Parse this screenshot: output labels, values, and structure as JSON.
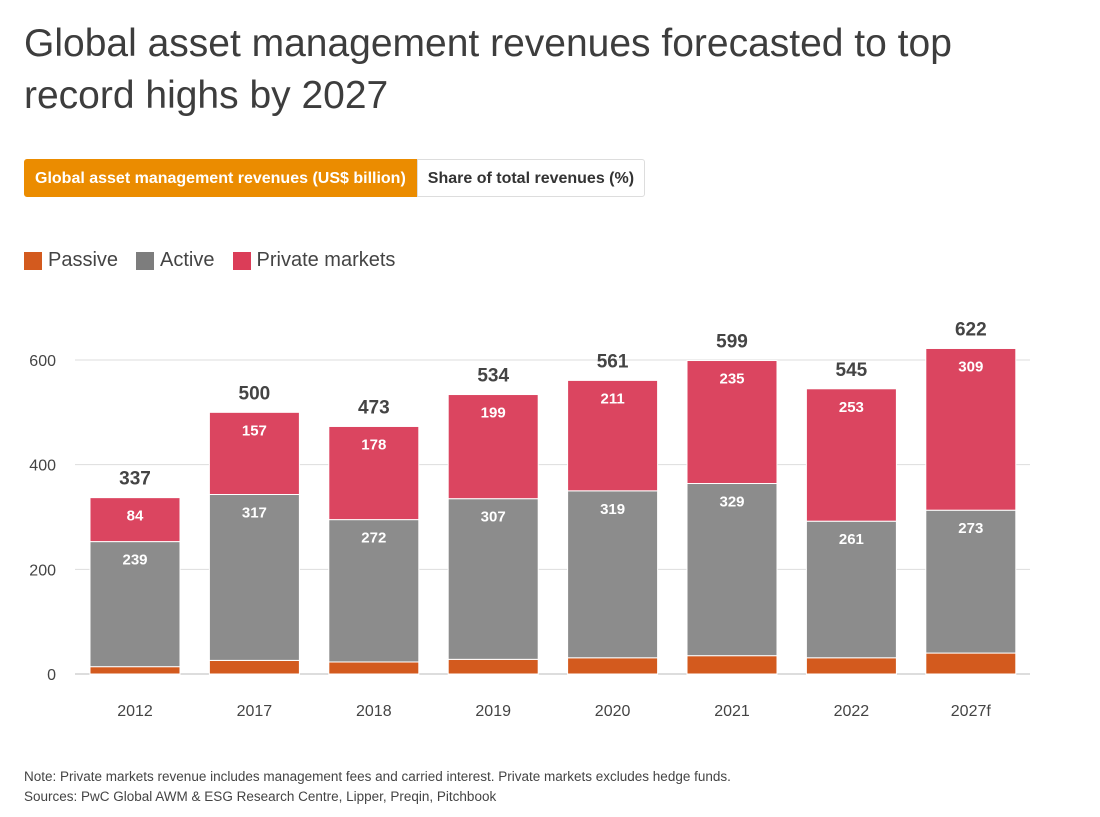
{
  "title": "Global asset management revenues forecasted to top record highs by 2027",
  "tabs": [
    {
      "label": "Global asset management revenues (US$ billion)",
      "active": true
    },
    {
      "label": "Share of total revenues (%)",
      "active": false
    }
  ],
  "colors": {
    "accent": "#eb8c00",
    "passive": "#d35a1e",
    "active": "#8c8c8c",
    "private": "#db4560"
  },
  "notes": {
    "note": "Note: Private markets revenue includes management fees and carried interest. Private markets excludes hedge funds.",
    "sources": "Sources: PwC Global AWM & ESG Research Centre, Lipper, Preqin, Pitchbook"
  },
  "chart_data": {
    "type": "bar",
    "stacked": true,
    "categories": [
      "2012",
      "2017",
      "2018",
      "2019",
      "2020",
      "2021",
      "2022",
      "2027f"
    ],
    "series": [
      {
        "name": "Passive",
        "values": [
          14,
          26,
          23,
          28,
          31,
          35,
          31,
          40
        ],
        "labeled": false
      },
      {
        "name": "Active",
        "values": [
          239,
          317,
          272,
          307,
          319,
          329,
          261,
          273
        ],
        "labeled": true
      },
      {
        "name": "Private markets",
        "values": [
          84,
          157,
          178,
          199,
          211,
          235,
          253,
          309
        ],
        "labeled": true
      }
    ],
    "totals": [
      337,
      500,
      473,
      534,
      561,
      599,
      545,
      622
    ],
    "yticks": [
      0,
      200,
      400,
      600
    ],
    "ylim": [
      0,
      630
    ],
    "grid": true,
    "legend": "top-left"
  }
}
